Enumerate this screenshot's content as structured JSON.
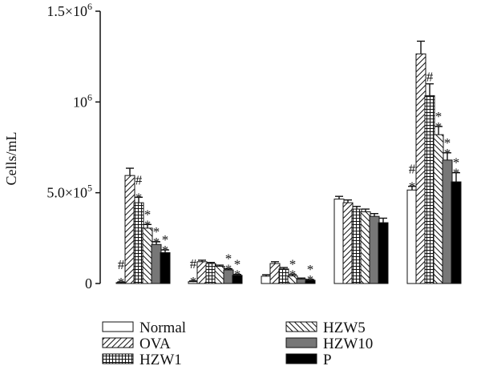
{
  "chart_data": {
    "type": "bar",
    "title": "",
    "xlabel": "",
    "ylabel": "Cells/mL",
    "ylim": [
      0,
      1500000
    ],
    "yticks": [
      {
        "value": 0,
        "mant": "0",
        "exp": ""
      },
      {
        "value": 500000,
        "mant": "5.0×10",
        "exp": "5"
      },
      {
        "value": 1000000,
        "mant": "10",
        "exp": "6"
      },
      {
        "value": 1500000,
        "mant": "1.5×10",
        "exp": "6"
      }
    ],
    "categories": [
      "",
      "",
      "",
      "",
      ""
    ],
    "legend_position": "bottom",
    "grid": false,
    "series": [
      {
        "name": "Normal",
        "pattern": "blank",
        "values": [
          5000,
          10000,
          40000,
          465000,
          515000
        ],
        "errors": [
          3000,
          4000,
          8000,
          15000,
          20000
        ],
        "marks": [
          "#*",
          "#*",
          "",
          "",
          "#*"
        ]
      },
      {
        "name": "OVA",
        "pattern": "diag-right",
        "values": [
          595000,
          120000,
          110000,
          445000,
          1265000
        ],
        "errors": [
          40000,
          8000,
          10000,
          15000,
          70000
        ],
        "marks": [
          "",
          "",
          "",
          "",
          ""
        ]
      },
      {
        "name": "HZW1",
        "pattern": "grid",
        "values": [
          445000,
          110000,
          80000,
          410000,
          1035000
        ],
        "errors": [
          30000,
          6000,
          8000,
          15000,
          65000
        ],
        "marks": [
          "#*",
          "",
          "",
          "",
          "#"
        ]
      },
      {
        "name": "HZW5",
        "pattern": "diag-left",
        "values": [
          305000,
          95000,
          42000,
          395000,
          820000
        ],
        "errors": [
          20000,
          6000,
          8000,
          15000,
          45000
        ],
        "marks": [
          "**",
          "",
          "**",
          "",
          "**"
        ]
      },
      {
        "name": "HZW10",
        "pattern": "gray",
        "values": [
          215000,
          75000,
          25000,
          370000,
          680000
        ],
        "errors": [
          15000,
          6000,
          5000,
          15000,
          40000
        ],
        "marks": [
          "**",
          "**",
          "",
          "",
          "**"
        ]
      },
      {
        "name": "P",
        "pattern": "black",
        "values": [
          170000,
          45000,
          18000,
          335000,
          560000
        ],
        "errors": [
          15000,
          5000,
          4000,
          25000,
          50000
        ],
        "marks": [
          "**",
          "**",
          "**",
          "",
          "**"
        ]
      }
    ]
  }
}
